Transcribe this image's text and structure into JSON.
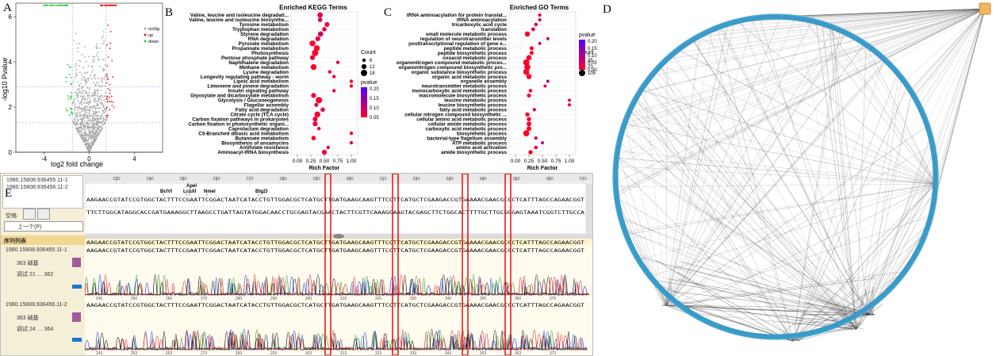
{
  "panels": {
    "a": "A",
    "b": "B",
    "c": "C",
    "d": "D",
    "e": "E"
  },
  "chart_data": [
    {
      "id": "volcano",
      "type": "scatter",
      "xlabel": "log2 fold change",
      "ylabel": "-log10 Pvalue",
      "xlim": [
        -6.5,
        6.5
      ],
      "ylim": [
        0,
        6.6
      ],
      "xticks": [
        "-4",
        "0",
        "4"
      ],
      "yticks": [
        "0",
        "2",
        "4",
        "6"
      ],
      "legend": [
        "noSig",
        "up",
        "down"
      ],
      "colors": {
        "noSig": "#a8a8a8",
        "up": "#e41a1c",
        "down": "#2ecc40"
      }
    },
    {
      "id": "kegg",
      "type": "scatter",
      "title": "Enriched KEGG Terms",
      "xlabel": "Rich Factor",
      "xticks": [
        "0.00",
        "0.25",
        "0.50",
        "0.75",
        "1.00"
      ],
      "categories": [
        "Valine, leucine and isoleucine degradati...",
        "Valine, leucine and isoleucine biosynthe...",
        "Tyrosine metabolism",
        "Tryptophan metabolism",
        "Styrene degradation",
        "RNA degradation",
        "Pyruvate metabolism",
        "Propanoate metabolism",
        "Photosynthesis",
        "Pentose phosphate pathway",
        "Naphthalene degradation",
        "Methane metabolism",
        "Lysine degradation",
        "Longevity regulating pathway - worm",
        "Lipoic acid metabolism",
        "Limonene and pinene degradation",
        "Insulin signaling pathway",
        "Glyoxylate and dicarboxylate metabolism",
        "Glycolysis / Gluconeogenesis",
        "Flagellar assembly",
        "Fatty acid degradation",
        "Citrate cycle (TCA cycle)",
        "Carbon fixation pathways in prokaryotes",
        "Carbon fixation in photosynthetic organi...",
        "Caprolactam degradation",
        "C5-Branched dibasic acid metabolism",
        "Butanoate metabolism",
        "Biosynthesis of ansamycins",
        "Antifolate resistance",
        "Aminoacyl-tRNA biosynthesis"
      ],
      "x": [
        0.42,
        0.42,
        0.55,
        0.5,
        0.43,
        0.38,
        0.28,
        0.36,
        0.33,
        0.28,
        0.75,
        0.3,
        0.6,
        0.68,
        1.0,
        1.0,
        0.68,
        0.3,
        0.4,
        0.35,
        0.47,
        0.37,
        0.33,
        0.33,
        0.4,
        1.0,
        0.3,
        1.0,
        0.57,
        0.5
      ],
      "count": [
        14,
        10,
        12,
        10,
        14,
        12,
        16,
        16,
        18,
        12,
        6,
        16,
        6,
        6,
        6,
        6,
        6,
        12,
        18,
        8,
        10,
        16,
        12,
        12,
        6,
        6,
        10,
        6,
        6,
        12
      ],
      "pvalue": [
        0.03,
        0.03,
        0.01,
        0.03,
        0.05,
        0.02,
        0.0,
        0.0,
        0.0,
        0.02,
        0.02,
        0.0,
        0.02,
        0.02,
        0.0,
        0.0,
        0.02,
        0.01,
        0.0,
        0.03,
        0.01,
        0.01,
        0.02,
        0.02,
        0.02,
        0.0,
        0.0,
        0.0,
        0.02,
        0.01
      ],
      "legend_count": {
        "title": "Count",
        "values": [
          "6",
          "12",
          "18"
        ]
      },
      "legend_pvalue": {
        "title": "pvalue",
        "values": [
          "0.20",
          "0.15",
          "0.10",
          "0.05"
        ]
      }
    },
    {
      "id": "go",
      "type": "scatter",
      "title": "Enriched GO Terms",
      "xlabel": "Rich Factor",
      "xticks": [
        "0.00",
        "0.25",
        "0.50",
        "0.75",
        "1.00"
      ],
      "categories": [
        "tRNA aminoacylation for protein translat...",
        "tRNA aminoacylation",
        "tricarboxylic acid cycle",
        "translation",
        "small molecule metabolic process",
        "regulation of neurotransmitter levels",
        "posttranscriptional regulation of gene e...",
        "peptide metabolic process",
        "peptide biosynthetic process",
        "oxoacid metabolic process",
        "organonitrogen compound metabolic proces...",
        "organonitrogen compound biosynthetic pro...",
        "organic substance biosynthetic process",
        "organic acid metabolic process",
        "organelle assembly",
        "neurotransmitter metabolic process",
        "monocarboxylic acid metabolic process",
        "macromolecule biosynthetic process",
        "leucine metabolic process",
        "leucine biosynthetic process",
        "fatty acid metabolic process",
        "cellular nitrogen compound biosynthetic ...",
        "cellular amino acid metabolic process",
        "cellular amide metabolic process",
        "carboxylic acid metabolic process",
        "biosynthetic process",
        "bacterial-type flagellum assembly",
        "ATP metabolic process",
        "amino acid activation",
        "amide biosynthetic process"
      ],
      "x": [
        0.45,
        0.45,
        0.38,
        0.33,
        0.22,
        0.6,
        0.45,
        0.3,
        0.3,
        0.25,
        0.2,
        0.22,
        0.2,
        0.25,
        0.6,
        0.55,
        0.28,
        0.25,
        1.0,
        1.0,
        0.35,
        0.22,
        0.25,
        0.25,
        0.25,
        0.2,
        0.38,
        0.5,
        0.38,
        0.28
      ],
      "count": [
        40,
        40,
        45,
        50,
        80,
        35,
        35,
        55,
        55,
        80,
        105,
        100,
        100,
        80,
        35,
        35,
        45,
        55,
        35,
        35,
        40,
        60,
        60,
        70,
        70,
        100,
        40,
        35,
        45,
        60
      ],
      "pvalue": [
        0.02,
        0.02,
        0.05,
        0.02,
        0.0,
        0.05,
        0.05,
        0.0,
        0.0,
        0.0,
        0.0,
        0.0,
        0.0,
        0.0,
        0.1,
        0.05,
        0.01,
        0.0,
        0.02,
        0.02,
        0.05,
        0.0,
        0.0,
        0.0,
        0.0,
        0.0,
        0.05,
        0.1,
        0.02,
        0.0
      ],
      "legend_count": {
        "title": "Count",
        "values": [
          "35",
          "70",
          "105"
        ]
      },
      "legend_pvalue": {
        "title": "pvalue",
        "values": [
          "0.20",
          "0.15",
          "0.10",
          "0.05",
          "0.00"
        ]
      }
    }
  ],
  "network": {
    "nodes_on_circle": "many",
    "hub_color": "#f0b860",
    "ring_color": "#3a9bc8"
  },
  "sequence_viewer": {
    "ruler": [
      "230",
      "240",
      "250",
      "260",
      "270",
      "280",
      "290",
      "300",
      "310",
      "320",
      "330",
      "340",
      "350",
      "360",
      "370"
    ],
    "sample_1": "1980.15808.936455.11-1",
    "sample_2": "1980.15808.936456.11-2",
    "enzymes": [
      "ApeI",
      "BclVI",
      "LcuXI",
      "NmeI",
      "BtgZI"
    ],
    "consensus": "AAGAACCGTATCCGTGGCTACTTTCCGAATTCGGACTAATCATACCTGTTGGACGCTCATGCTTGATGAAGCAAGTTTCCTTCATGCTCGAAGACCGTGAAAACGAACGCCCTCATTTAGCCAGAACGGT",
    "seq_lower": "TTCTTGGCATAGGCACCGATGAAAGGCTTAAGCCTGATTAGTATGGACAACCTGCGAGTACGAACTACTTCGTTCAAAGGAAGTACGAGCTTCTGGCACTTTTGCTTGCGGGAGTAAATCGGTCTTGCCA",
    "mutation_marks": [
      "T",
      "G"
    ],
    "labels": {
      "tool": "空格:",
      "panel_title": "序列列表",
      "len1": "363 碱基",
      "len2": "363 碱基",
      "sub1": "调试 21 … 362",
      "sub2": "调试 24 … 364",
      "nav": "上一个(P)"
    },
    "trace_ticks_1": [
      "240",
      "250",
      "260",
      "270",
      "280",
      "290",
      "300",
      "310",
      "320",
      "330",
      "340",
      "350",
      "360",
      "370"
    ],
    "trace_ticks_2": [
      "243",
      "253",
      "263",
      "273",
      "283",
      "293",
      "303",
      "313",
      "323",
      "333",
      "343",
      "353",
      "363",
      "373"
    ]
  }
}
